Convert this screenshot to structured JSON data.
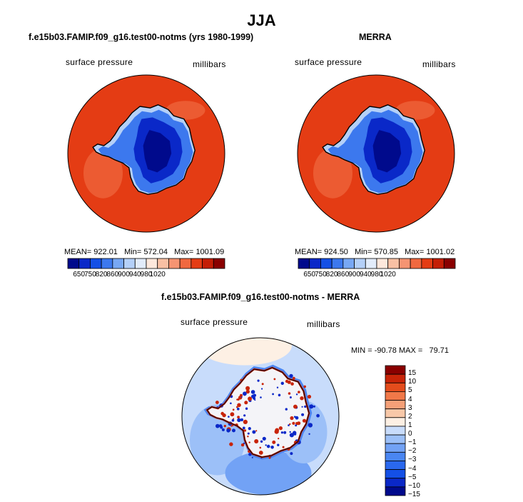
{
  "page_title": "JJA",
  "panels": [
    {
      "title": "f.e15b03.FAMIP.f09_g16.test00-notms (yrs 1980-1999)",
      "variable": "surface pressure",
      "units": "millibars",
      "stats": {
        "mean_label": "MEAN=",
        "mean": "922.01",
        "min_label": "Min=",
        "min": "572.04",
        "max_label": "Max=",
        "max": "1001.09"
      }
    },
    {
      "title": "MERRA",
      "variable": "surface pressure",
      "units": "millibars",
      "stats": {
        "mean_label": "MEAN=",
        "mean": "924.50",
        "min_label": "Min=",
        "min": "570.85",
        "max_label": "Max=",
        "max": "1001.02"
      }
    },
    {
      "title": "f.e15b03.FAMIP.f09_g16.test00-notms - MERRA",
      "variable": "surface pressure",
      "units": "millibars",
      "stats": {
        "min_label": "MIN =",
        "min": "-90.78",
        "max_label": "MAX =",
        "max": "79.71"
      }
    }
  ],
  "colors": {
    "abs_scale": [
      "#000a8c",
      "#0a28c8",
      "#1450e6",
      "#3c78ee",
      "#78a8f4",
      "#b4d0f8",
      "#e2ecfa",
      "#fde8dc",
      "#f8c0a4",
      "#f59472",
      "#f0683f",
      "#e43c14",
      "#c41e06",
      "#8a0000"
    ],
    "diff_scale": [
      "#000a8c",
      "#0a28c8",
      "#1450e6",
      "#2a68ee",
      "#4a86f2",
      "#72a2f5",
      "#9cc0f8",
      "#c8dcfb",
      "#fdf0e4",
      "#f8c8a8",
      "#f5a078",
      "#f07848",
      "#e44c1c",
      "#c82408",
      "#8a0000"
    ],
    "land_outline": "#000000"
  },
  "chart_data": [
    {
      "type": "heatmap",
      "title": "f.e15b03.FAMIP.f09_g16.test00-notms (yrs 1980-1999)",
      "variable": "surface pressure",
      "units": "millibars",
      "projection": "south polar stereographic",
      "colorbar_ticks": [
        "650",
        "750",
        "820",
        "860",
        "900",
        "940",
        "980",
        "1020"
      ],
      "stats": {
        "mean": 922.01,
        "min": 572.04,
        "max": 1001.09
      }
    },
    {
      "type": "heatmap",
      "title": "MERRA",
      "variable": "surface pressure",
      "units": "millibars",
      "projection": "south polar stereographic",
      "colorbar_ticks": [
        "650",
        "750",
        "820",
        "860",
        "900",
        "940",
        "980",
        "1020"
      ],
      "stats": {
        "mean": 924.5,
        "min": 570.85,
        "max": 1001.02
      }
    },
    {
      "type": "heatmap",
      "title": "f.e15b03.FAMIP.f09_g16.test00-notms - MERRA",
      "variable": "surface pressure",
      "units": "millibars",
      "projection": "south polar stereographic",
      "colorbar_ticks": [
        "15",
        "10",
        "5",
        "4",
        "3",
        "2",
        "1",
        "0",
        "−1",
        "−2",
        "−3",
        "−4",
        "−5",
        "−10",
        "−15"
      ],
      "stats": {
        "min": -90.78,
        "max": 79.71
      }
    }
  ]
}
